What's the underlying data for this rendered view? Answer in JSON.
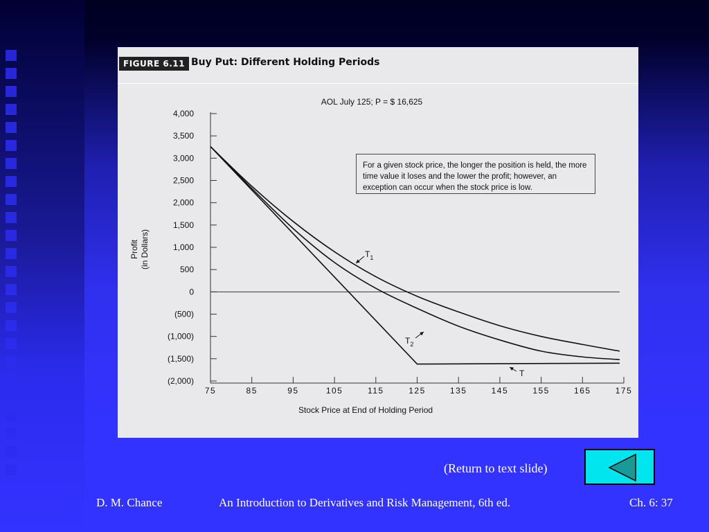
{
  "figure": {
    "number": "FIGURE 6.11",
    "title": "Buy Put: Different Holding Periods"
  },
  "chart_data": {
    "type": "line",
    "title": "AOL July 125; P = $ 16,625",
    "xlabel": "Stock Price at End of Holding Period",
    "ylabel_line1": "Profit",
    "ylabel_line2": "(in Dollars)",
    "xlim": [
      75,
      175
    ],
    "ylim": [
      -2000,
      4000
    ],
    "x_ticks": [
      75,
      85,
      95,
      105,
      115,
      125,
      135,
      145,
      155,
      165,
      175
    ],
    "x_tick_labels": [
      "75",
      "85",
      "95",
      "105",
      "115",
      "125",
      "135",
      "145",
      "155",
      "165",
      "175"
    ],
    "y_ticks": [
      4000,
      3500,
      3000,
      2500,
      2000,
      1500,
      1000,
      500,
      0,
      -500,
      -1000,
      -1500,
      -2000
    ],
    "y_tick_labels": [
      "4,000",
      "3,500",
      "3,000",
      "2,500",
      "2,000",
      "1,500",
      "1,000",
      "500",
      "0",
      "(500)",
      "(1,000)",
      "(1,500)",
      "(2,000)"
    ],
    "grid": false,
    "series": [
      {
        "name": "T1",
        "x": [
          75,
          85,
          95,
          105,
          115,
          125,
          135,
          145,
          155,
          165,
          174
        ],
        "y": [
          3260,
          2370,
          1580,
          900,
          340,
          -100,
          -450,
          -760,
          -1000,
          -1180,
          -1330
        ]
      },
      {
        "name": "T2",
        "x": [
          75,
          85,
          95,
          105,
          115,
          125,
          135,
          145,
          155,
          165,
          174
        ],
        "y": [
          3260,
          2320,
          1420,
          660,
          80,
          -370,
          -770,
          -1080,
          -1330,
          -1460,
          -1520
        ]
      },
      {
        "name": "T",
        "x": [
          75,
          125,
          174
        ],
        "y": [
          3260,
          -1620,
          -1600
        ]
      }
    ],
    "annotations": [
      {
        "label": "T",
        "subscript": "1"
      },
      {
        "label": "T",
        "subscript": "2"
      },
      {
        "label": "T",
        "subscript": ""
      }
    ],
    "note": "For a given stock price, the longer the position is held, the more time value it loses and the lower the profit; however, an exception can occur when the stock price is low."
  },
  "nav": {
    "return_label": "(Return to text slide)",
    "return_icon": "left-triangle-icon"
  },
  "footer": {
    "author": "D. M. Chance",
    "book": "An Introduction to Derivatives and Risk Management, 6th ed.",
    "page": "Ch. 6:  37"
  },
  "colors": {
    "slide_background": "#3333ff",
    "button_fill": "#00e5ee",
    "icon_fill": "#1a9999"
  }
}
